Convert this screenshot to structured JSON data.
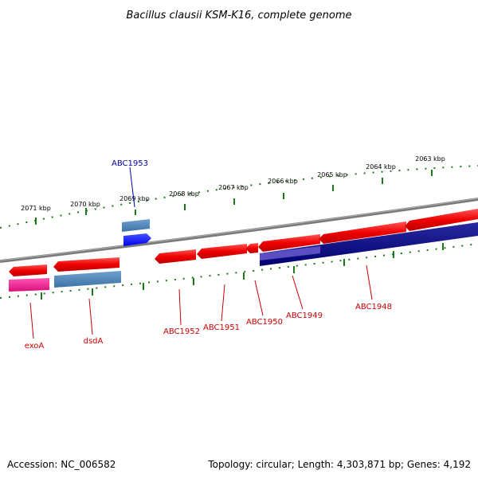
{
  "title": "Bacillus clausii KSM-K16, complete genome",
  "footer": {
    "accession": "Accession: NC_006582",
    "topology": "Topology: circular; Length: 4,303,871 bp; Genes: 4,192"
  },
  "colors": {
    "backbone": "#888888",
    "ticks": "#1a7a1a",
    "forward_gene": "#ee1111",
    "reverse_gene_navy": "#000080",
    "steelblue": "#4682b4",
    "blue": "#0000ff",
    "magenta": "#e8178a",
    "label_red": "#cc0000",
    "label_blue": "#0000aa"
  },
  "scale": {
    "kbp_labels": [
      "2071 kbp",
      "2070 kbp",
      "2069 kbp",
      "2068 kbp",
      "2067 kbp",
      "2066 kbp",
      "2065 kbp",
      "2064 kbp",
      "2063 kbp"
    ]
  },
  "labels": {
    "abc1953": "ABC1953",
    "exoA": "exoA",
    "dsdA": "dsdA",
    "abc1952": "ABC1952",
    "abc1951": "ABC1951",
    "abc1950": "ABC1950",
    "abc1949": "ABC1949",
    "abc1948": "ABC1948"
  }
}
